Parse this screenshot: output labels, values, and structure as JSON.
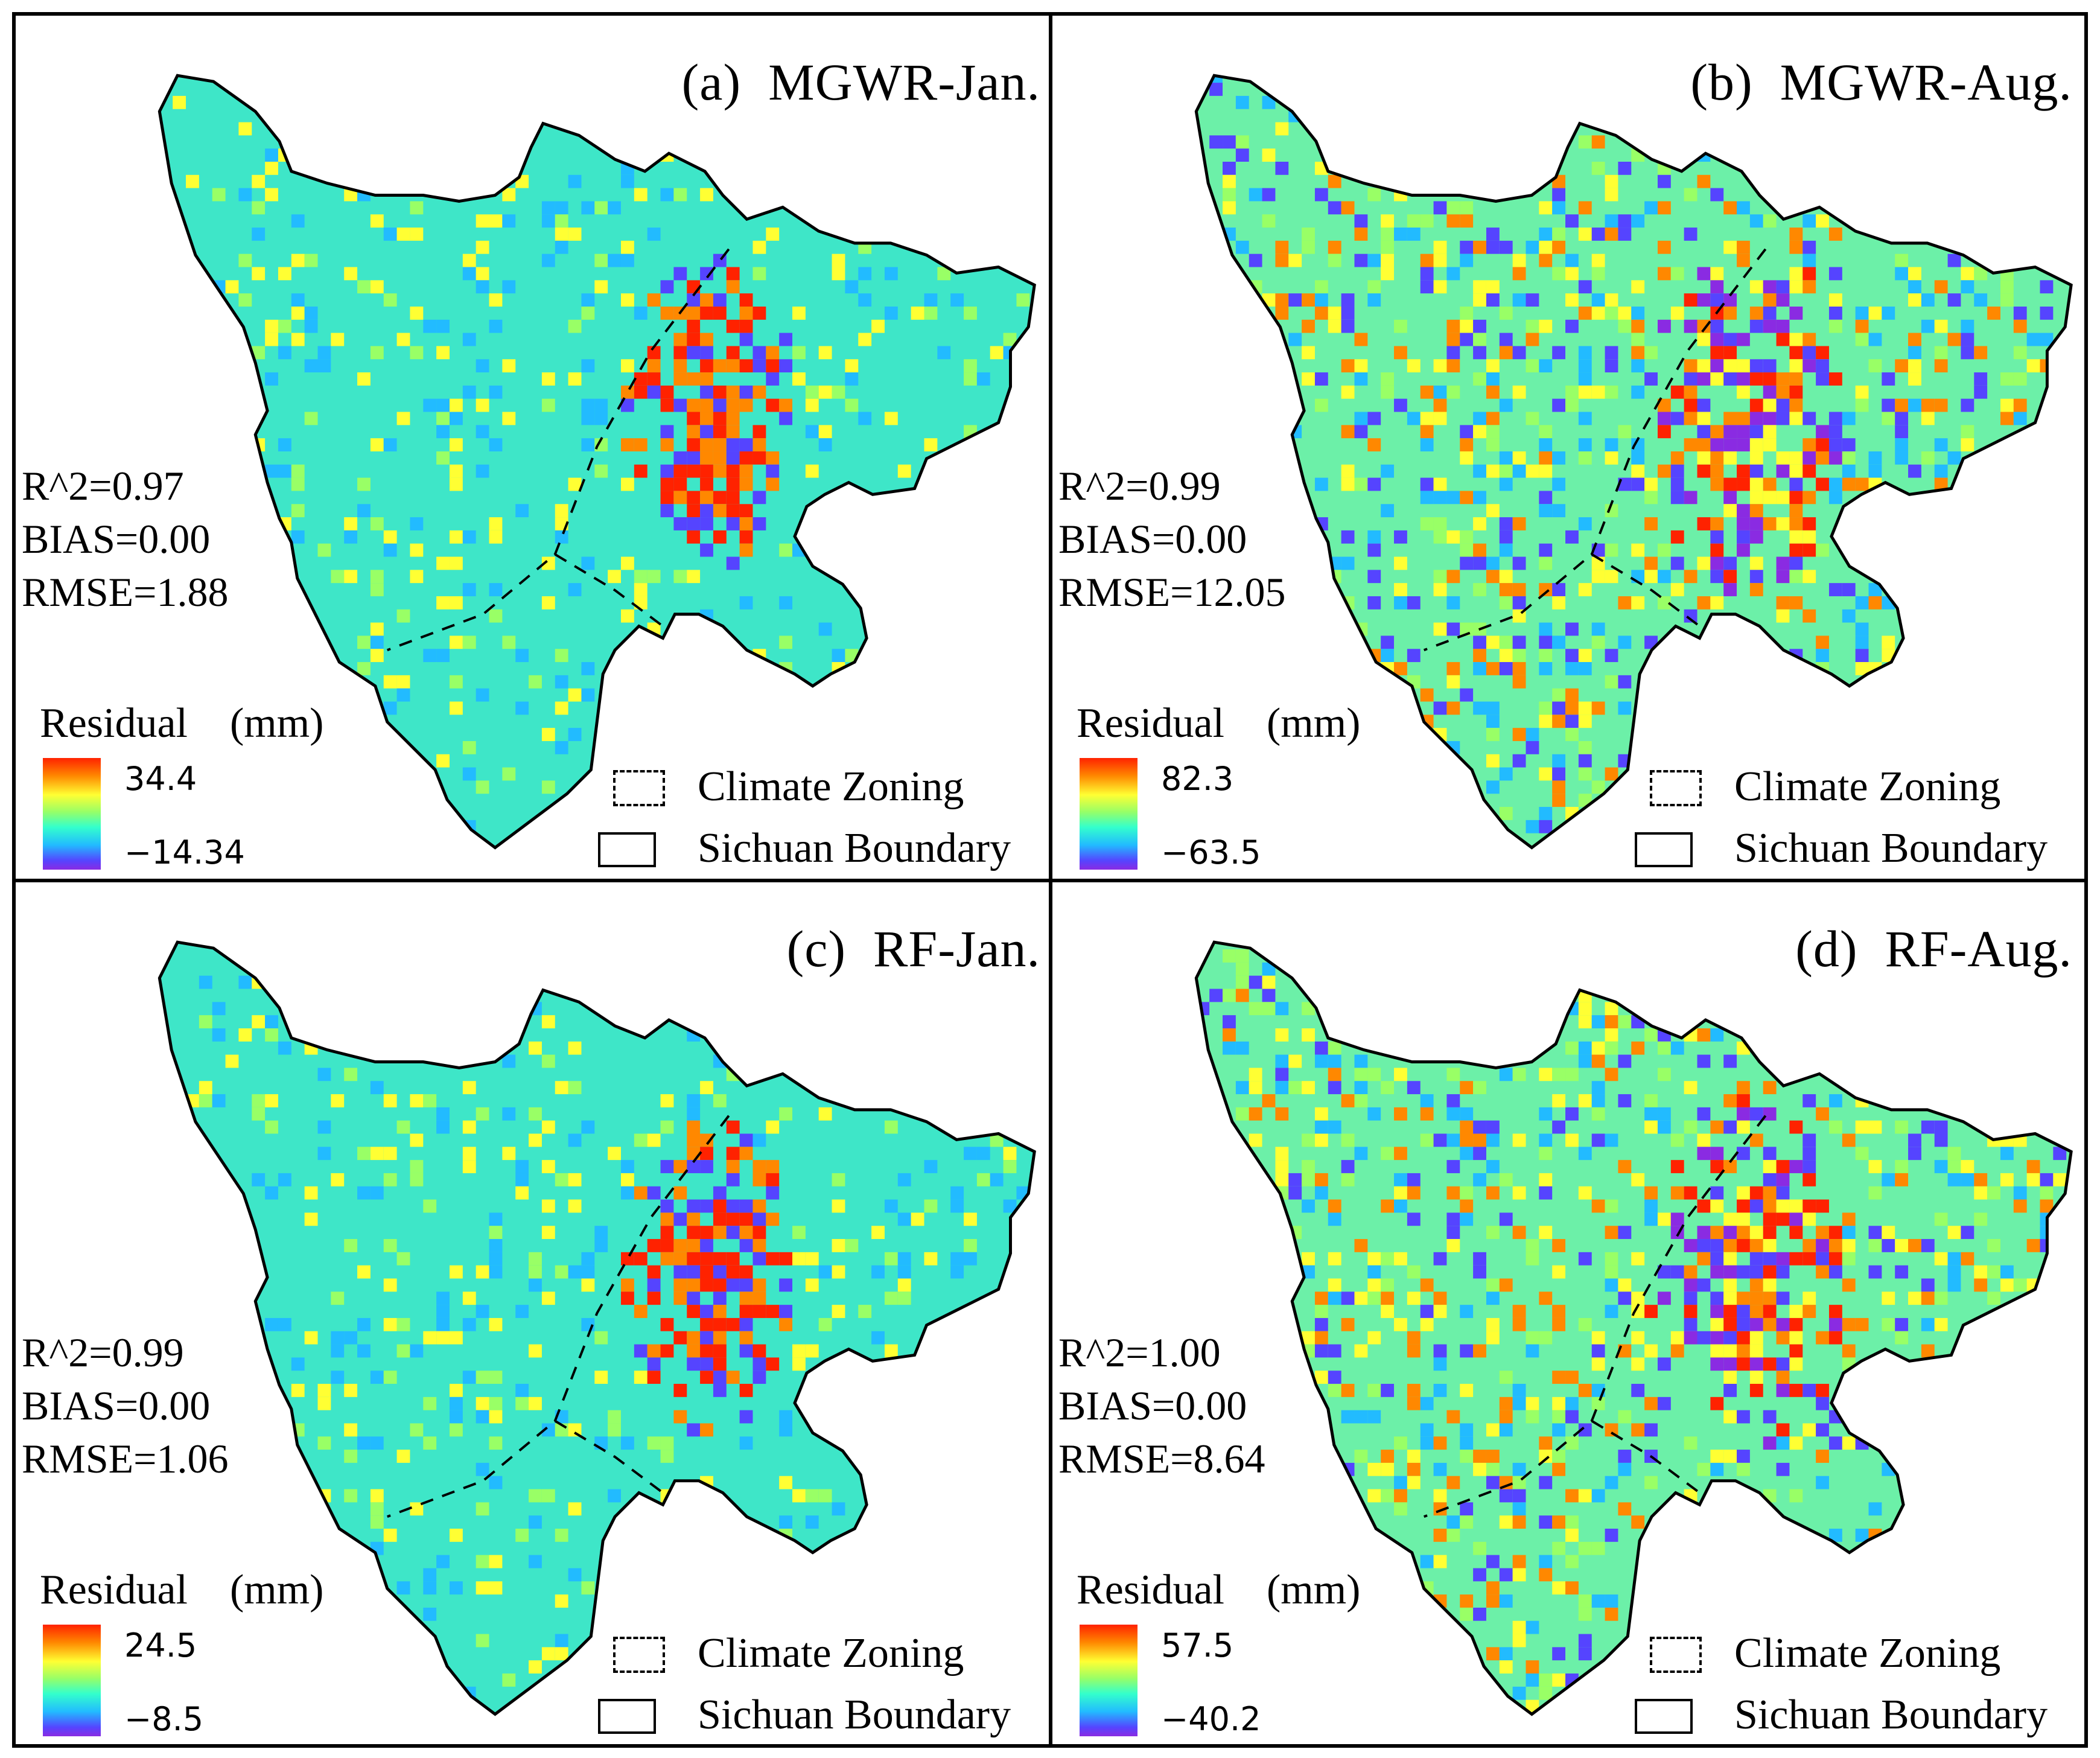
{
  "colors": {
    "ramp": [
      "#ff2200",
      "#ff8800",
      "#ffff33",
      "#99ff66",
      "#33ffcc",
      "#22bbff",
      "#5544ff",
      "#8a2be2"
    ],
    "boundary": "#000000",
    "background": "#ffffff"
  },
  "legend": {
    "climate_zoning": "Climate Zoning",
    "sichuan_boundary": "Sichuan Boundary"
  },
  "panels": [
    {
      "id": "a",
      "title": "(a)  MGWR-Jan.",
      "r2": "R^2=0.97",
      "bias": "BIAS=0.00",
      "rmse": "RMSE=1.88",
      "residual_label": "Residual　(mm)",
      "max": "34.4",
      "min": "−14.34",
      "variant": "jan"
    },
    {
      "id": "b",
      "title": "(b)  MGWR-Aug.",
      "r2": "R^2=0.99",
      "bias": "BIAS=0.00",
      "rmse": "RMSE=12.05",
      "residual_label": "Residual　(mm)",
      "max": "82.3",
      "min": "−63.5",
      "variant": "aug"
    },
    {
      "id": "c",
      "title": "(c)  RF-Jan.",
      "r2": "R^2=0.99",
      "bias": "BIAS=0.00",
      "rmse": "RMSE=1.06",
      "residual_label": "Residual　(mm)",
      "max": "24.5",
      "min": "−8.5",
      "variant": "jan"
    },
    {
      "id": "d",
      "title": "(d)  RF-Aug.",
      "r2": "R^2=1.00",
      "bias": "BIAS=0.00",
      "rmse": "RMSE=8.64",
      "residual_label": "Residual　(mm)",
      "max": "57.5",
      "min": "−40.2",
      "variant": "aug"
    }
  ]
}
